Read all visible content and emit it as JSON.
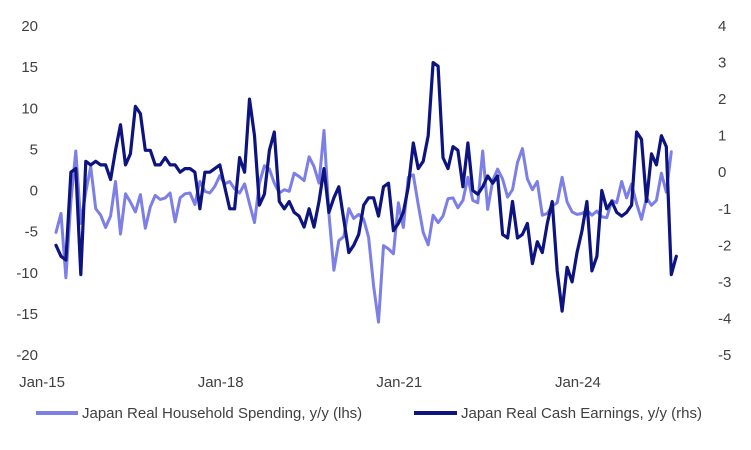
{
  "chart_data": {
    "type": "line",
    "x_labels": [
      "Jan-15",
      "Jan-18",
      "Jan-21",
      "Jan-24"
    ],
    "left_axis": {
      "ticks": [
        "20",
        "15",
        "10",
        "5",
        "0",
        "-5",
        "-10",
        "-15",
        "-20"
      ],
      "ylim": [
        -20,
        20
      ]
    },
    "right_axis": {
      "ticks": [
        "4",
        "3",
        "2",
        "1",
        "0",
        "-1",
        "-2",
        "-3",
        "-4",
        "-5"
      ],
      "ylim": [
        -5,
        4
      ]
    },
    "x_range": [
      "Jan-15",
      "Dec-25"
    ],
    "grid": false,
    "legend_position": "bottom",
    "series": [
      {
        "name": "Japan Real Household Spending, y/y (lhs)",
        "axis": "left",
        "color": "#7b7fe6",
        "values": [
          -5.1,
          -2.8,
          -10.6,
          -1.3,
          4.8,
          -4.0,
          -0.2,
          2.9,
          -2.2,
          -3.0,
          -4.5,
          -3.1,
          1.1,
          -5.3,
          -0.4,
          -1.4,
          -2.6,
          -0.5,
          -4.6,
          -2.0,
          -0.6,
          -1.1,
          -0.9,
          -0.3,
          -3.8,
          -0.9,
          -0.4,
          -0.3,
          -1.7,
          1.1,
          -0.1,
          -0.3,
          0.5,
          1.8,
          0.8,
          1.1,
          0.2,
          -0.3,
          0.8,
          -1.6,
          -3.9,
          0.9,
          3.0,
          2.6,
          0.9,
          -0.3,
          0.1,
          -0.1,
          2.1,
          1.7,
          1.2,
          4.1,
          2.9,
          0.9,
          7.3,
          -2.8,
          -9.7,
          -6.1,
          -5.6,
          -2.2,
          -3.4,
          -2.9,
          -3.5,
          -5.7,
          -11.6,
          -16.0,
          -6.7,
          -7.1,
          -7.7,
          -1.5,
          -4.5,
          1.6,
          1.9,
          -1.7,
          -5.1,
          -6.6,
          -3.0,
          -3.9,
          -3.1,
          -1.0,
          -0.9,
          -2.1,
          -1.2,
          1.6,
          -1.2,
          -1.5,
          4.8,
          -2.3,
          1.2,
          2.6,
          1.4,
          -0.8,
          0.1,
          3.4,
          5.1,
          1.4,
          0.1,
          1.1,
          -3.0,
          -2.8,
          -1.9,
          -1.5,
          1.6,
          -1.4,
          -2.6,
          -2.9,
          -2.8,
          -2.4,
          -3.0,
          -2.5,
          -3.2,
          -3.3,
          -1.2,
          -1.5,
          1.1,
          -0.9,
          0.8,
          -1.6,
          -3.5,
          -0.9,
          -1.8,
          -1.2,
          2.1,
          -0.2,
          4.7
        ]
      },
      {
        "name": "Japan Real Cash Earnings, y/y (rhs)",
        "axis": "right",
        "color": "#0d1480",
        "values": [
          -2.0,
          -2.3,
          -2.4,
          0.0,
          0.1,
          -2.8,
          0.3,
          0.2,
          0.3,
          0.2,
          0.2,
          -0.2,
          0.6,
          1.3,
          0.2,
          0.5,
          1.8,
          1.6,
          0.6,
          0.6,
          0.2,
          0.2,
          0.4,
          0.2,
          0.2,
          0.0,
          0.1,
          0.1,
          0.0,
          -1.0,
          0.0,
          0.0,
          0.1,
          0.2,
          -0.4,
          -1.0,
          -1.0,
          0.4,
          0.0,
          2.0,
          1.0,
          -0.9,
          -0.6,
          0.6,
          1.1,
          -0.8,
          -1.0,
          -0.8,
          -1.1,
          -1.2,
          -1.5,
          -1.0,
          -1.5,
          -0.8,
          0.1,
          -1.1,
          -0.7,
          -0.4,
          -1.3,
          -2.2,
          -2.0,
          -1.7,
          -0.9,
          -0.7,
          -0.7,
          -1.2,
          -0.4,
          -0.3,
          -1.6,
          -1.4,
          -1.1,
          -0.4,
          0.8,
          0.1,
          0.3,
          1.0,
          3.0,
          2.9,
          0.4,
          0.1,
          0.7,
          0.6,
          -0.4,
          0.8,
          -0.5,
          -0.6,
          -0.4,
          -0.1,
          -0.3,
          -0.1,
          -1.7,
          -1.8,
          -0.8,
          -1.8,
          -1.7,
          -1.4,
          -2.5,
          -1.9,
          -2.2,
          -1.4,
          -0.8,
          -2.7,
          -3.8,
          -2.6,
          -3.0,
          -2.2,
          -1.6,
          -0.8,
          -2.7,
          -2.3,
          -0.5,
          -1.0,
          -0.8,
          -1.1,
          -1.2,
          -1.1,
          -0.9,
          1.1,
          0.9,
          -0.8,
          0.5,
          0.2,
          1.0,
          0.7,
          -2.8,
          -2.3
        ]
      }
    ]
  }
}
